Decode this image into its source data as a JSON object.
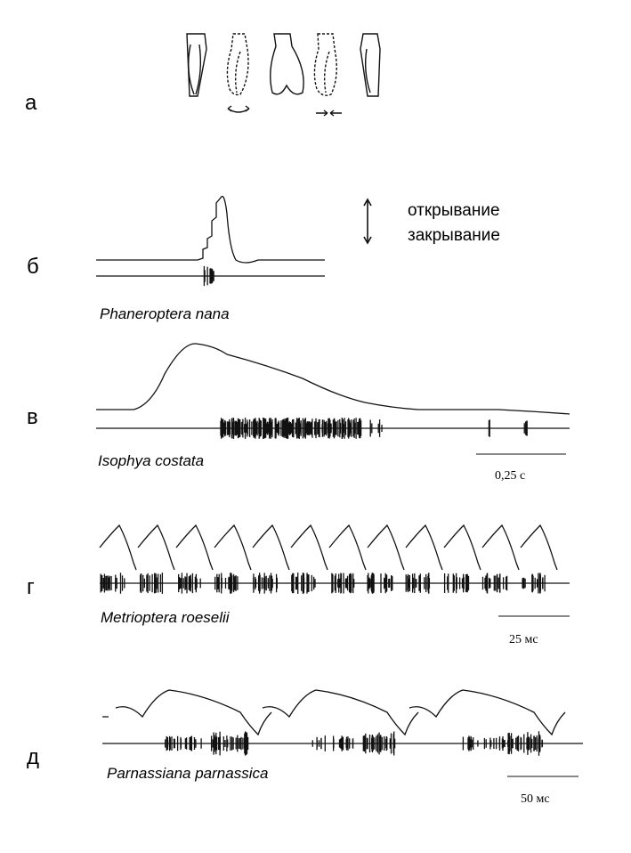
{
  "panels": [
    {
      "letter": "а"
    },
    {
      "letter": "б",
      "species": "Phaneroptera nana"
    },
    {
      "letter": "в",
      "species": "Isophya costata",
      "scale_bar": "0,25 с"
    },
    {
      "letter": "г",
      "species": "Metrioptera roeselii",
      "scale_bar": "25 мс"
    },
    {
      "letter": "д",
      "species": "Parnassiana parnassica",
      "scale_bar": "50 мс"
    }
  ],
  "legend": {
    "opening": "открывание",
    "closing": "закрывание"
  }
}
